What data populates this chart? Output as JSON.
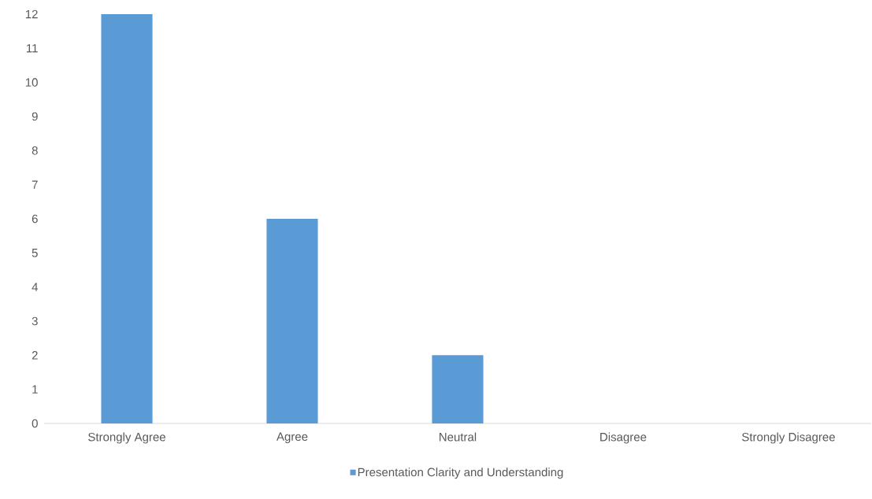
{
  "chart_data": {
    "type": "bar",
    "categories": [
      "Strongly Agree",
      "Agree",
      "Neutral",
      "Disagree",
      "Strongly Disagree"
    ],
    "series": [
      {
        "name": "Presentation Clarity and Understanding",
        "color": "#5b9bd5",
        "values": [
          12,
          6,
          2,
          0,
          0
        ]
      }
    ],
    "ylim": [
      0,
      12
    ],
    "yticks": [
      0,
      1,
      2,
      3,
      4,
      5,
      6,
      7,
      8,
      9,
      10,
      11,
      12
    ],
    "legend": "bottom"
  }
}
